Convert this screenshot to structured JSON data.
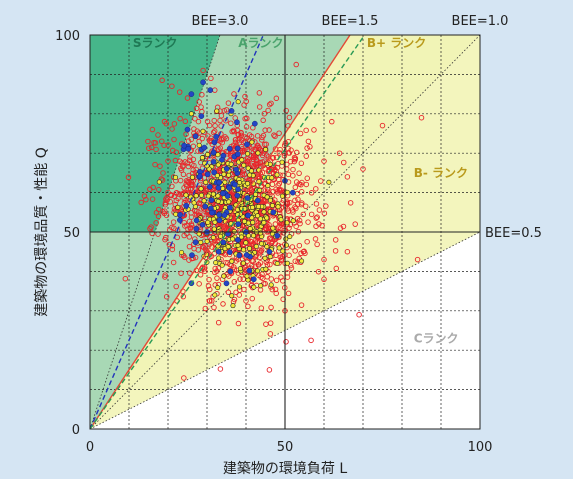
{
  "chart_data": {
    "type": "scatter",
    "title": "",
    "xlabel": "建築物の環境負荷 L",
    "ylabel": "建築物の環境品質・性能 Q",
    "xlim": [
      0,
      100
    ],
    "ylim": [
      0,
      100
    ],
    "x_ticks": [
      "0",
      "50",
      "100"
    ],
    "y_ticks": [
      "0",
      "50",
      "100"
    ],
    "grid": true,
    "bee_lines": [
      {
        "label": "BEE=3.0",
        "value": 3.0
      },
      {
        "label": "BEE=1.5",
        "value": 1.5
      },
      {
        "label": "BEE=1.0",
        "value": 1.0
      },
      {
        "label": "BEE=0.5",
        "value": 0.5
      }
    ],
    "rank_labels": [
      {
        "text": "Sランク",
        "x": 11,
        "y": 98,
        "color": "#1f7a55"
      },
      {
        "text": "Aランク",
        "x": 38,
        "y": 98,
        "color": "#4aa36c"
      },
      {
        "text": "B+ ランク",
        "x": 71,
        "y": 98,
        "color": "#b99a1c"
      },
      {
        "text": "B- ランク",
        "x": 83,
        "y": 65,
        "color": "#b99a1c"
      },
      {
        "text": "Cランク",
        "x": 83,
        "y": 23,
        "color": "#aaaaaa"
      }
    ],
    "zone_colors": {
      "S": "#46b68a",
      "A": "#a8d8b5",
      "Bplus": "#f1f3b6",
      "Bminus": "#f7f7ce",
      "C": "#ffffff"
    },
    "series": [
      {
        "marker": "red-open-circle",
        "color": "#e8262b",
        "distribution": {
          "x_mean": 38,
          "y_mean": 57,
          "x_sd": 9,
          "y_sd": 11,
          "count": 1500
        },
        "points": [
          [
            18.5,
            88.5
          ],
          [
            21,
            87
          ],
          [
            23,
            85.5
          ],
          [
            25,
            84
          ],
          [
            29,
            91
          ],
          [
            31,
            89
          ],
          [
            28,
            83
          ],
          [
            16,
            76
          ],
          [
            32,
            86
          ],
          [
            85,
            79
          ],
          [
            75,
            77
          ],
          [
            35,
            81
          ],
          [
            62,
            78
          ],
          [
            54,
            75
          ],
          [
            56,
            73
          ],
          [
            60,
            68
          ],
          [
            64,
            70
          ],
          [
            66,
            64
          ],
          [
            70,
            66
          ],
          [
            68,
            52
          ],
          [
            63,
            48
          ],
          [
            66,
            45
          ],
          [
            60,
            43
          ],
          [
            69,
            29
          ],
          [
            84,
            43
          ],
          [
            60,
            38
          ],
          [
            46,
            15
          ],
          [
            50,
            30
          ],
          [
            33,
            27
          ],
          [
            26,
            52
          ],
          [
            24,
            44
          ],
          [
            22,
            63
          ],
          [
            20,
            68
          ],
          [
            19,
            72
          ]
        ]
      },
      {
        "marker": "yellow-filled-circle",
        "color": "#f3e83a",
        "distribution": {
          "x_mean": 37,
          "y_mean": 55,
          "x_sd": 6,
          "y_sd": 8,
          "count": 350
        },
        "points": [
          [
            26,
            80
          ],
          [
            28,
            72
          ],
          [
            48,
            42
          ],
          [
            43,
            56
          ],
          [
            32,
            34
          ],
          [
            42,
            36
          ]
        ]
      },
      {
        "marker": "blue-filled-circle",
        "color": "#2445c4",
        "distribution": {
          "x_mean": 33,
          "y_mean": 60,
          "x_sd": 5,
          "y_sd": 10,
          "count": 70
        },
        "points": [
          [
            24,
            71
          ],
          [
            25,
            76
          ],
          [
            26,
            85
          ],
          [
            29,
            88
          ],
          [
            28,
            64
          ],
          [
            31,
            56
          ],
          [
            35,
            55
          ],
          [
            38,
            52
          ],
          [
            40,
            50
          ],
          [
            43,
            58
          ],
          [
            47,
            55
          ],
          [
            50,
            63
          ],
          [
            52,
            60
          ],
          [
            33,
            45
          ],
          [
            30,
            50
          ],
          [
            26,
            37
          ],
          [
            36,
            40
          ],
          [
            42,
            38
          ],
          [
            46,
            45
          ]
        ]
      }
    ],
    "reference_lines": [
      {
        "style": "solid",
        "color": "#e34a36",
        "slope": 1.5
      },
      {
        "style": "dashed",
        "color": "#2233bb",
        "slope": 2.25
      },
      {
        "style": "dashed",
        "color": "#2a9a55",
        "slope": 1.42
      }
    ]
  }
}
